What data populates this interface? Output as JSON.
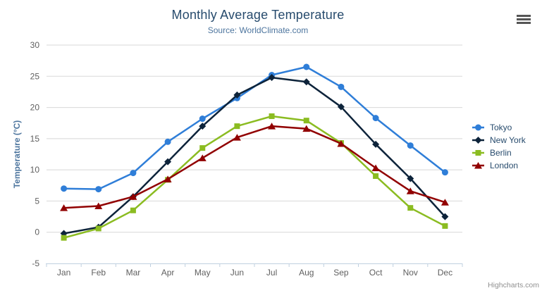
{
  "chart_data": {
    "type": "line",
    "title": "Monthly Average Temperature",
    "subtitle": "Source: WorldClimate.com",
    "xlabel": "",
    "ylabel": "Temperature (°C)",
    "ylim": [
      -5,
      30
    ],
    "ytick_interval": 5,
    "grid": true,
    "legend_position": "right",
    "categories": [
      "Jan",
      "Feb",
      "Mar",
      "Apr",
      "May",
      "Jun",
      "Jul",
      "Aug",
      "Sep",
      "Oct",
      "Nov",
      "Dec"
    ],
    "series": [
      {
        "name": "Tokyo",
        "color": "#2f7ed8",
        "marker": "circle",
        "values": [
          7.0,
          6.9,
          9.5,
          14.5,
          18.2,
          21.5,
          25.2,
          26.5,
          23.3,
          18.3,
          13.9,
          9.6
        ]
      },
      {
        "name": "New York",
        "color": "#0d233a",
        "marker": "diamond",
        "values": [
          -0.2,
          0.8,
          5.7,
          11.3,
          17.0,
          22.0,
          24.8,
          24.1,
          20.1,
          14.1,
          8.6,
          2.5
        ]
      },
      {
        "name": "Berlin",
        "color": "#8bbc21",
        "marker": "square",
        "values": [
          -0.9,
          0.6,
          3.5,
          8.4,
          13.5,
          17.0,
          18.6,
          17.9,
          14.3,
          9.0,
          3.9,
          1.0
        ]
      },
      {
        "name": "London",
        "color": "#910000",
        "marker": "triangle",
        "values": [
          3.9,
          4.2,
          5.7,
          8.5,
          11.9,
          15.2,
          17.0,
          16.6,
          14.2,
          10.3,
          6.6,
          4.8
        ]
      }
    ]
  },
  "styles": {
    "grid_color": "#d8d8d8",
    "axis_line_color": "#c0d0e0",
    "tick_color": "#c0d0e0",
    "axis_label_color": "#606060",
    "title_color": "#274b6d",
    "subtitle_color": "#4d759e",
    "yaxis_title_color": "#4d759e",
    "legend_text_color": "#274b6d",
    "credits_color": "#909090"
  },
  "credits": {
    "label": "Highcharts.com"
  }
}
